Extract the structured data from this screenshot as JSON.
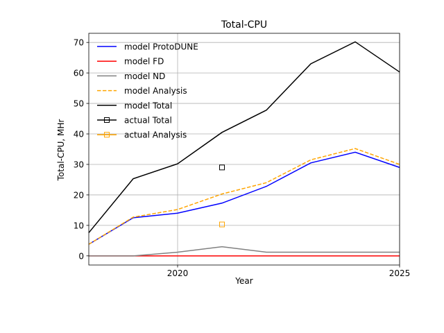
{
  "chart_data": {
    "type": "line",
    "title": "Total-CPU",
    "xlabel": "Year",
    "ylabel": "Total-CPU, MHr",
    "xlim": [
      2018,
      2025
    ],
    "ylim": [
      -3,
      73
    ],
    "xticks": [
      2020,
      2025
    ],
    "yticks": [
      0,
      10,
      20,
      30,
      40,
      50,
      60,
      70
    ],
    "grid": true,
    "legend_position": "upper-left",
    "x": [
      2018,
      2019,
      2020,
      2021,
      2022,
      2023,
      2024,
      2025
    ],
    "series": [
      {
        "name": "model ProtoDUNE",
        "color": "#0000ff",
        "dash": "solid",
        "values": [
          3.8,
          12.5,
          14.0,
          17.3,
          22.8,
          30.5,
          34.0,
          29.0
        ]
      },
      {
        "name": "model FD",
        "color": "#ff0000",
        "dash": "solid",
        "values": [
          0.0,
          0.0,
          0.0,
          0.0,
          0.0,
          0.0,
          0.0,
          0.0
        ]
      },
      {
        "name": "model ND",
        "color": "#808080",
        "dash": "solid",
        "values": [
          0.0,
          0.0,
          1.2,
          3.0,
          1.2,
          1.2,
          1.2,
          1.2
        ]
      },
      {
        "name": "model Analysis",
        "color": "#ffa500",
        "dash": "dashed",
        "values": [
          3.8,
          12.7,
          15.2,
          20.3,
          24.0,
          31.5,
          35.2,
          30.0
        ]
      },
      {
        "name": "model Total",
        "color": "#000000",
        "dash": "solid",
        "values": [
          7.6,
          25.3,
          30.2,
          40.5,
          47.8,
          63.0,
          70.2,
          60.3
        ]
      }
    ],
    "actual_series": [
      {
        "name": "actual Total",
        "color": "#000000",
        "marker": "square",
        "points": [
          {
            "x": 2021,
            "y": 29.0
          }
        ]
      },
      {
        "name": "actual Analysis",
        "color": "#ffa500",
        "marker": "square",
        "points": [
          {
            "x": 2021,
            "y": 10.3
          }
        ]
      }
    ]
  }
}
